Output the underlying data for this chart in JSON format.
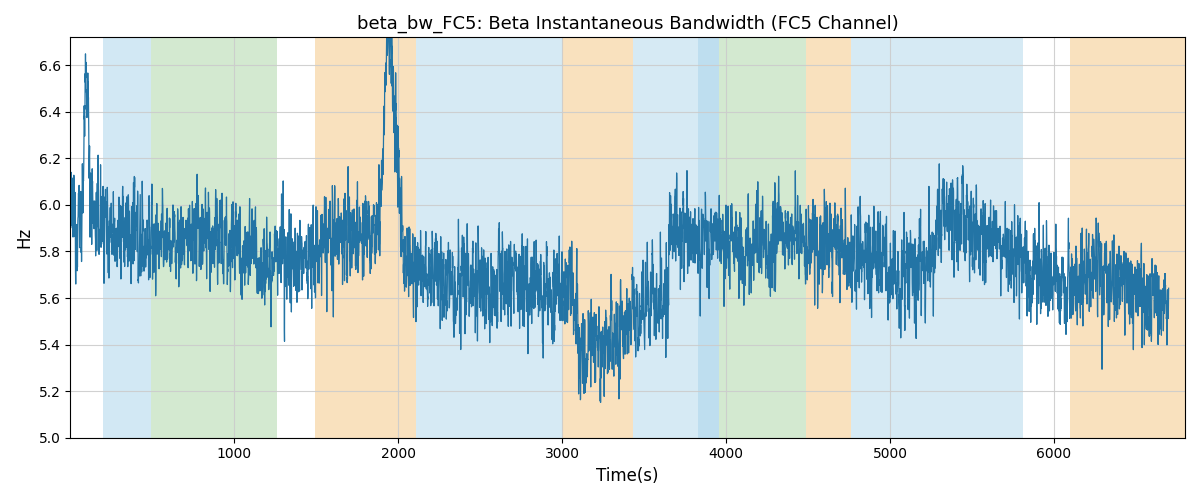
{
  "title": "beta_bw_FC5: Beta Instantaneous Bandwidth (FC5 Channel)",
  "xlabel": "Time(s)",
  "ylabel": "Hz",
  "ylim": [
    5.0,
    6.72
  ],
  "xlim": [
    0,
    6800
  ],
  "figsize": [
    12.0,
    5.0
  ],
  "dpi": 100,
  "line_color": "#2374a5",
  "line_width": 0.9,
  "bg_bands": [
    {
      "xmin": 200,
      "xmax": 490,
      "color": "#aed6eb",
      "alpha": 0.55
    },
    {
      "xmin": 490,
      "xmax": 1260,
      "color": "#a8d5a2",
      "alpha": 0.5
    },
    {
      "xmin": 1490,
      "xmax": 2110,
      "color": "#f5c98a",
      "alpha": 0.55
    },
    {
      "xmin": 2110,
      "xmax": 3000,
      "color": "#aed6eb",
      "alpha": 0.5
    },
    {
      "xmin": 3000,
      "xmax": 3430,
      "color": "#f5c98a",
      "alpha": 0.55
    },
    {
      "xmin": 3430,
      "xmax": 3830,
      "color": "#aed6eb",
      "alpha": 0.5
    },
    {
      "xmin": 3830,
      "xmax": 3960,
      "color": "#aed6eb",
      "alpha": 0.8
    },
    {
      "xmin": 3960,
      "xmax": 4490,
      "color": "#a8d5a2",
      "alpha": 0.5
    },
    {
      "xmin": 4490,
      "xmax": 4760,
      "color": "#f5c98a",
      "alpha": 0.55
    },
    {
      "xmin": 4760,
      "xmax": 5810,
      "color": "#aed6eb",
      "alpha": 0.5
    },
    {
      "xmin": 6100,
      "xmax": 6800,
      "color": "#f5c98a",
      "alpha": 0.55
    }
  ],
  "xticks": [
    1000,
    2000,
    3000,
    4000,
    5000,
    6000
  ],
  "yticks": [
    5.0,
    5.2,
    5.4,
    5.6,
    5.8,
    6.0,
    6.2,
    6.4,
    6.6
  ],
  "random_seed": 12345,
  "n_points": 6700
}
